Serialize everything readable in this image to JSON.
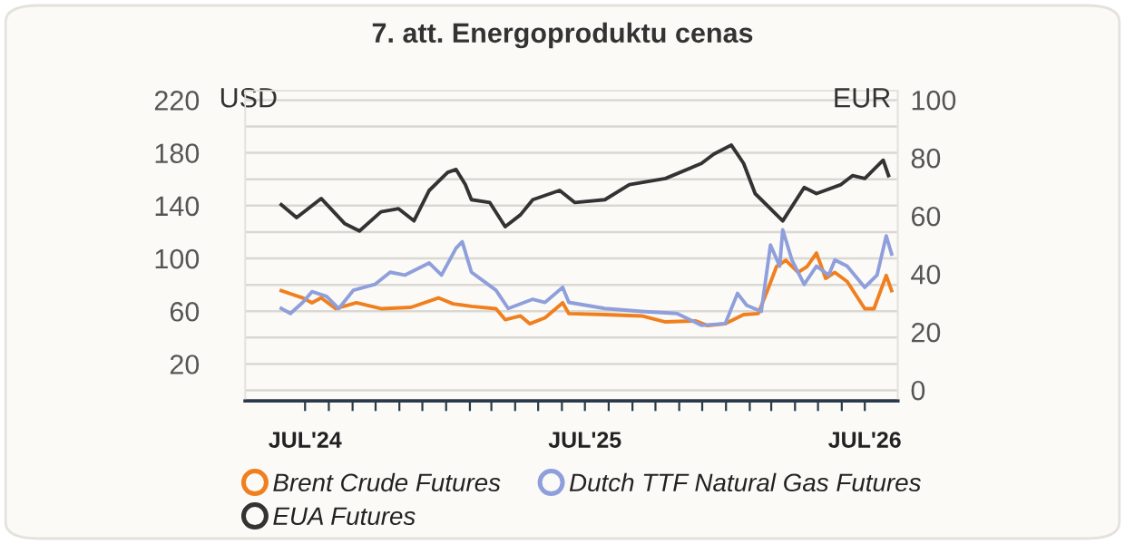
{
  "chart_data": {
    "type": "line",
    "title": "7. att. Energoproduktu cenas",
    "ylabel": "USD",
    "y2label": "EUR",
    "xlim": [
      "2024-04-14",
      "2026-08-13"
    ],
    "xticks": [
      {
        "value": "2024-07-01",
        "label": "JUL'24"
      },
      {
        "value": "2024-08-01",
        "label": null
      },
      {
        "value": "2024-09-01",
        "label": null
      },
      {
        "value": "2024-10-01",
        "label": null
      },
      {
        "value": "2024-11-01",
        "label": null
      },
      {
        "value": "2024-12-01",
        "label": null
      },
      {
        "value": "2025-01-01",
        "label": null
      },
      {
        "value": "2025-02-01",
        "label": null
      },
      {
        "value": "2025-03-01",
        "label": null
      },
      {
        "value": "2025-04-01",
        "label": null
      },
      {
        "value": "2025-05-01",
        "label": null
      },
      {
        "value": "2025-06-01",
        "label": null
      },
      {
        "value": "2025-07-01",
        "label": "JUL'25"
      },
      {
        "value": "2025-08-01",
        "label": null
      },
      {
        "value": "2025-09-01",
        "label": null
      },
      {
        "value": "2025-10-01",
        "label": null
      },
      {
        "value": "2025-11-01",
        "label": null
      },
      {
        "value": "2025-12-01",
        "label": null
      },
      {
        "value": "2026-01-01",
        "label": null
      },
      {
        "value": "2026-02-01",
        "label": null
      },
      {
        "value": "2026-03-01",
        "label": null
      },
      {
        "value": "2026-04-01",
        "label": null
      },
      {
        "value": "2026-05-01",
        "label": null
      },
      {
        "value": "2026-06-01",
        "label": null
      },
      {
        "value": "2026-07-01",
        "label": "JUL'26"
      }
    ],
    "ylim": [
      -8,
      227
    ],
    "yticks": [
      {
        "value": 0,
        "label": null
      },
      20,
      {
        "value": 40,
        "label": null
      },
      60,
      {
        "value": 80,
        "label": null
      },
      100,
      {
        "value": 120,
        "label": null
      },
      140,
      {
        "value": 160,
        "label": null
      },
      180,
      {
        "value": 200,
        "label": null
      },
      220
    ],
    "y2lim": [
      -3.75,
      103.1
    ],
    "y2ticks": [
      0,
      20,
      40,
      60,
      80,
      100
    ],
    "grid": "y",
    "legend": "bottom",
    "marker": "none",
    "line_style": "solid",
    "series": [
      {
        "name": "Brent Crude Futures",
        "color": "#f07f1e",
        "axis": "y",
        "x": [
          "2024-05-31",
          "2024-06-28",
          "2024-07-10",
          "2024-07-22",
          "2024-08-10",
          "2024-09-06",
          "2024-10-08",
          "2024-11-16",
          "2024-12-22",
          "2025-01-10",
          "2025-02-03",
          "2025-03-07",
          "2025-03-19",
          "2025-04-08",
          "2025-04-20",
          "2025-05-10",
          "2025-06-02",
          "2025-06-10",
          "2025-07-27",
          "2025-09-13",
          "2025-10-14",
          "2025-11-22",
          "2025-12-08",
          "2025-12-31",
          "2026-01-24",
          "2026-02-12",
          "2026-02-24",
          "2026-03-08",
          "2026-03-20",
          "2026-04-05",
          "2026-04-17",
          "2026-04-29",
          "2026-05-11",
          "2026-05-23",
          "2026-06-08",
          "2026-07-01",
          "2026-07-13",
          "2026-07-29",
          "2026-08-05"
        ],
        "values": [
          75.6,
          70.1,
          66.4,
          70.1,
          61.9,
          66.4,
          61.9,
          62.9,
          70.1,
          65.6,
          63.7,
          61.9,
          53.6,
          56.4,
          50.5,
          55.0,
          66.4,
          58.2,
          57.4,
          56.4,
          51.9,
          52.7,
          49.1,
          50.5,
          57.4,
          58.2,
          75.6,
          94.0,
          98.6,
          89.4,
          94.0,
          104.1,
          84.9,
          89.4,
          82.5,
          61.9,
          61.9,
          87.1,
          75.6
        ]
      },
      {
        "name": "Dutch TTF Natural Gas Futures",
        "color": "#8f9fdb",
        "axis": "y2",
        "x": [
          "2024-05-31",
          "2024-06-12",
          "2024-06-28",
          "2024-07-10",
          "2024-07-29",
          "2024-08-14",
          "2024-09-02",
          "2024-09-30",
          "2024-10-20",
          "2024-11-08",
          "2024-12-10",
          "2024-12-26",
          "2025-01-14",
          "2025-01-22",
          "2025-02-03",
          "2025-02-19",
          "2025-03-07",
          "2025-03-23",
          "2025-04-24",
          "2025-05-10",
          "2025-06-02",
          "2025-06-10",
          "2025-07-27",
          "2025-09-13",
          "2025-10-29",
          "2025-11-30",
          "2025-12-31",
          "2026-01-16",
          "2026-01-28",
          "2026-02-16",
          "2026-02-28",
          "2026-03-12",
          "2026-03-16",
          "2026-03-28",
          "2026-04-13",
          "2026-04-29",
          "2026-05-15",
          "2026-05-23",
          "2026-06-08",
          "2026-07-01",
          "2026-07-17",
          "2026-07-29",
          "2026-08-05"
        ],
        "values": [
          28.1,
          26.4,
          30.2,
          33.9,
          32.3,
          28.1,
          34.4,
          36.4,
          40.6,
          39.6,
          43.8,
          39.6,
          48.9,
          51.1,
          40.6,
          37.5,
          34.4,
          28.1,
          31.3,
          30.2,
          35.4,
          30.2,
          28.1,
          27.1,
          26.4,
          22.3,
          22.9,
          33.3,
          29.2,
          27.1,
          50.0,
          42.7,
          55.2,
          44.8,
          36.4,
          42.7,
          39.6,
          44.8,
          42.7,
          35.4,
          39.6,
          53.1,
          46.9
        ]
      },
      {
        "name": "EUA Futures",
        "color": "#333333",
        "axis": "y2",
        "x": [
          "2024-05-31",
          "2024-06-20",
          "2024-07-22",
          "2024-08-22",
          "2024-09-10",
          "2024-10-08",
          "2024-10-31",
          "2024-11-20",
          "2024-12-10",
          "2025-01-03",
          "2025-01-14",
          "2025-01-26",
          "2025-02-03",
          "2025-02-27",
          "2025-03-19",
          "2025-04-08",
          "2025-04-24",
          "2025-05-29",
          "2025-06-18",
          "2025-07-27",
          "2025-08-28",
          "2025-10-14",
          "2025-11-30",
          "2025-12-16",
          "2026-01-08",
          "2026-01-24",
          "2026-02-08",
          "2026-03-16",
          "2026-04-13",
          "2026-04-29",
          "2026-05-31",
          "2026-06-15",
          "2026-07-01",
          "2026-07-25",
          "2026-08-01"
        ],
        "values": [
          63.9,
          59.4,
          66.0,
          57.3,
          54.8,
          61.4,
          62.5,
          58.3,
          68.8,
          75.0,
          76.0,
          70.8,
          65.6,
          64.6,
          56.3,
          60.4,
          65.6,
          68.8,
          64.6,
          65.6,
          70.8,
          72.9,
          78.1,
          81.3,
          84.4,
          78.1,
          67.7,
          58.3,
          69.8,
          67.7,
          70.8,
          73.9,
          72.9,
          79.2,
          73.9
        ]
      }
    ]
  }
}
